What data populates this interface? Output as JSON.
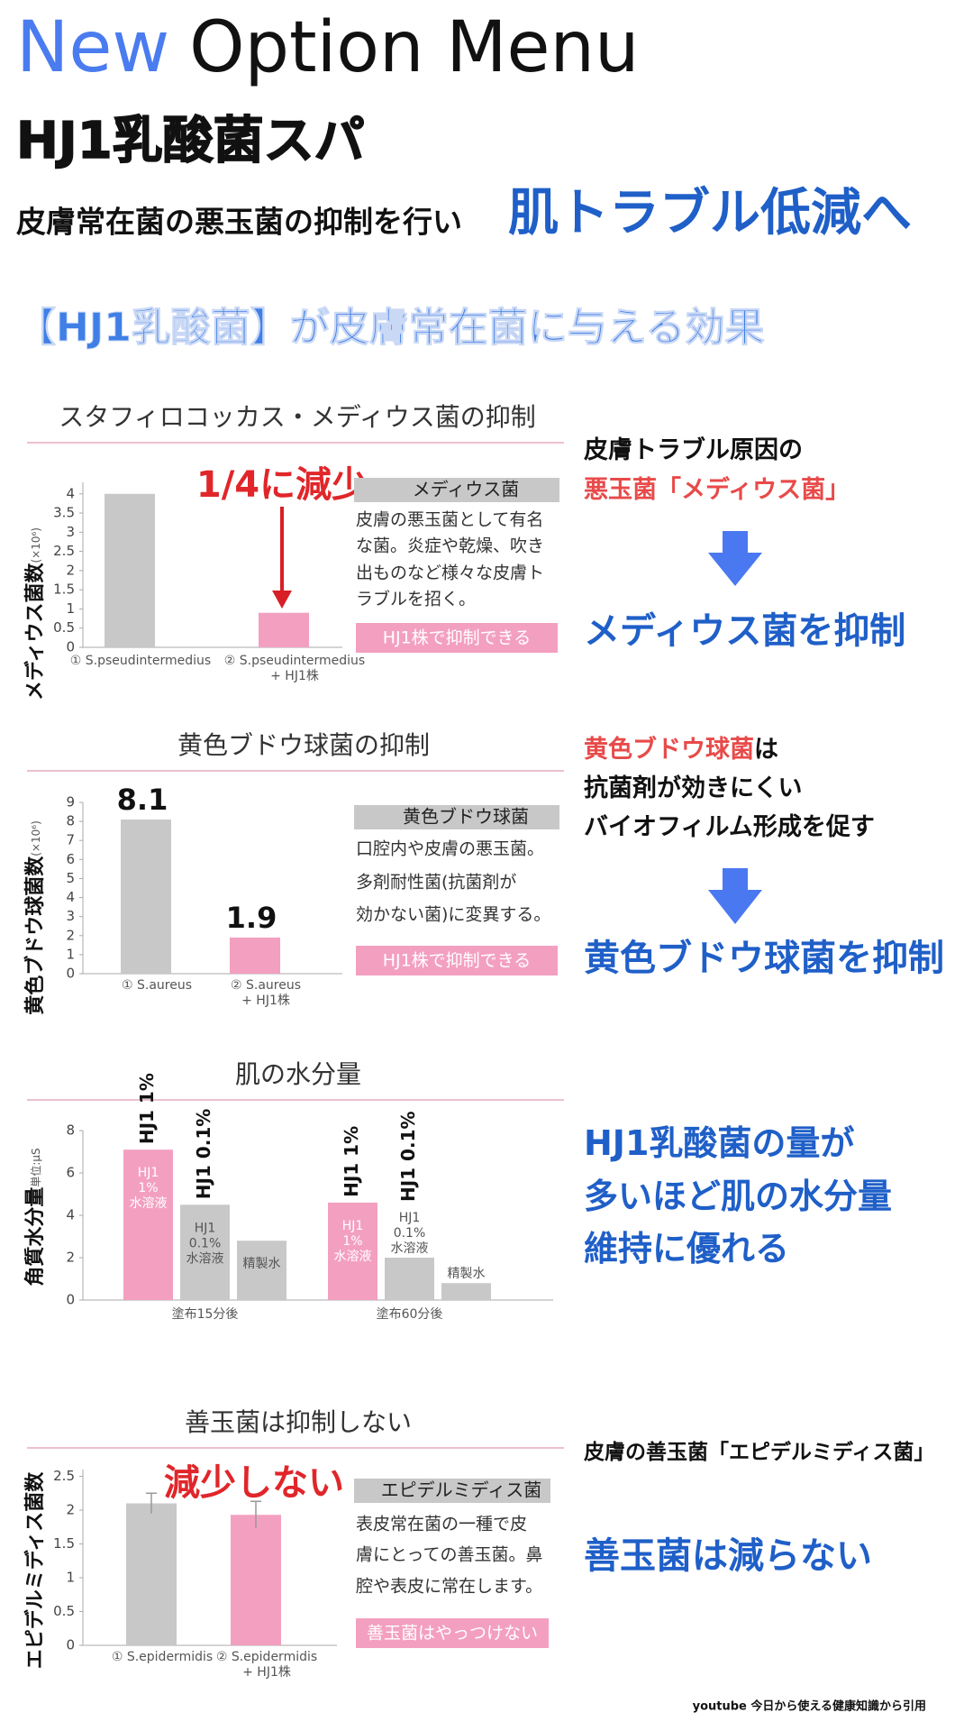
{
  "header": {
    "new": "New",
    "title": "Option Menu",
    "subtitle": "HJ1乳酸菌スパ",
    "lead": "皮膚常在菌の悪玉菌の抑制を行い",
    "lead_em": "肌トラブル低減へ",
    "section": "【HJ1乳酸菌】が皮膚常在菌に与える効果"
  },
  "footer": "youtube 今日から使える健康知識から引用",
  "chart_data": [
    {
      "type": "bar",
      "title": "スタフィロコッカス・メディウス菌の抑制",
      "y_label": "メディウス菌数",
      "y_unit": "(×10⁶)",
      "categories": [
        "① S.pseudintermedius",
        "② S.pseudintermedius\n+ HJ1株"
      ],
      "values": [
        4.0,
        0.9
      ],
      "colors": [
        "#c8c8c8",
        "#f3a0c0"
      ],
      "ylim": [
        0,
        4.3
      ],
      "yticks": [
        0,
        0.5,
        1,
        1.5,
        2,
        2.5,
        3,
        3.5,
        4
      ],
      "grid": false,
      "annotation": "1/4に減少",
      "note": {
        "heading": "メディウス菌",
        "body": [
          "皮膚の悪玉菌として有名",
          "な菌。炎症や乾燥、吹き",
          "出ものなど様々な皮膚ト",
          "ラブルを招く。"
        ],
        "button": "HJ1株で抑制できる"
      },
      "side": [
        [
          {
            "text": "皮膚トラブル原因の"
          }
        ],
        [
          {
            "text": "悪玉菌「メディウス菌」",
            "color": "#e84a4a"
          }
        ]
      ],
      "conclusion": "メディウス菌を抑制"
    },
    {
      "type": "bar",
      "title": "黄色ブドウ球菌の抑制",
      "y_label": "黄色ブドウ球菌数",
      "y_unit": "(×10⁶)",
      "categories": [
        "① S.aureus",
        "② S.aureus\n+ HJ1株"
      ],
      "values": [
        8.1,
        1.9
      ],
      "colors": [
        "#c8c8c8",
        "#f3a0c0"
      ],
      "show_values": true,
      "ylim": [
        0,
        9
      ],
      "yticks": [
        0,
        1,
        2,
        3,
        4,
        5,
        6,
        7,
        8,
        9
      ],
      "grid": false,
      "note": {
        "heading": "黄色ブドウ球菌",
        "body": [
          "口腔内や皮膚の悪玉菌。",
          "多剤耐性菌(抗菌剤が",
          "効かない菌)に変異する。"
        ],
        "button": "HJ1株で抑制できる"
      },
      "side": [
        [
          {
            "text": "黄色ブドウ球菌",
            "color": "#e84a4a"
          },
          {
            "text": "は"
          }
        ],
        [
          {
            "text": "抗菌剤が効きにくい"
          }
        ],
        [
          {
            "text": "バイオフィルム形成を促す"
          }
        ]
      ],
      "conclusion": "黄色ブドウ球菌を抑制"
    },
    {
      "type": "grouped_bar",
      "title": "肌の水分量",
      "y_label": "角質水分量",
      "y_unit": "単位:μS",
      "categories": [
        "塗布15分後",
        "塗布60分後"
      ],
      "series": [
        {
          "name": "HJ1 1%",
          "label": [
            "HJ1",
            "1%",
            "水溶液"
          ],
          "color": "#f3a0c0",
          "values": [
            7.1,
            4.6
          ]
        },
        {
          "name": "HJ1 0.1%",
          "label": [
            "HJ1",
            "0.1%",
            "水溶液"
          ],
          "color": "#c8c8c8",
          "values": [
            4.5,
            2.0
          ]
        },
        {
          "name": null,
          "label": [
            "精製水"
          ],
          "color": "#c8c8c8",
          "values": [
            2.8,
            0.8
          ]
        }
      ],
      "ylim": [
        0,
        8
      ],
      "yticks": [
        0,
        2,
        4,
        6,
        8
      ],
      "grid": false,
      "side": [
        [
          {
            "text": "HJ1乳酸菌の量が",
            "color": "#1f5fc8"
          }
        ],
        [
          {
            "text": "多いほど肌の水分量",
            "color": "#1f5fc8"
          }
        ],
        [
          {
            "text": "維持に優れる",
            "color": "#1f5fc8"
          }
        ]
      ]
    },
    {
      "type": "bar",
      "title": "善玉菌は抑制しない",
      "y_label": "エピデルミディス菌数",
      "categories": [
        "① S.epidermidis",
        "② S.epidermidis\n+ HJ1株"
      ],
      "values": [
        2.1,
        1.93
      ],
      "errors": [
        0.15,
        0.2
      ],
      "colors": [
        "#c8c8c8",
        "#f3a0c0"
      ],
      "ylim": [
        0,
        2.6
      ],
      "yticks": [
        0,
        0.5,
        1,
        1.5,
        2,
        2.5
      ],
      "grid": false,
      "annotation": "減少しない",
      "note": {
        "heading": "エピデルミディス菌",
        "body": [
          "表皮常在菌の一種で皮",
          "膚にとっての善玉菌。鼻",
          "腔や表皮に常在します。"
        ],
        "button": "善玉菌はやっつけない"
      },
      "side": [
        [
          {
            "text": "皮膚の善玉菌「エピデルミディス菌」"
          }
        ]
      ],
      "conclusion": "善玉菌は減らない"
    }
  ]
}
